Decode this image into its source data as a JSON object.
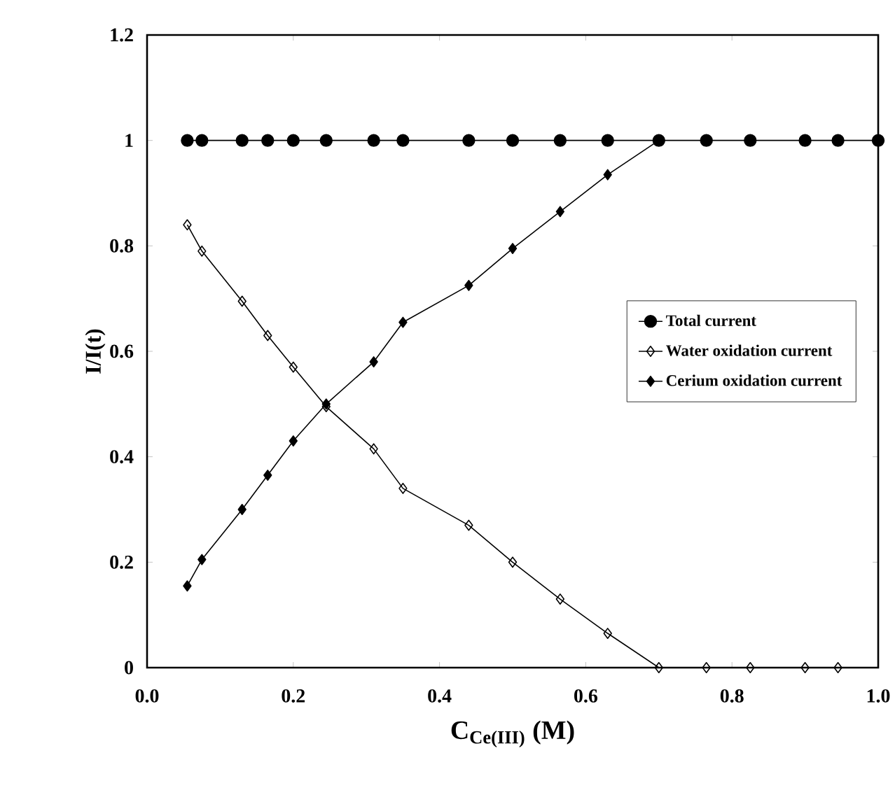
{
  "chart_data": {
    "type": "line",
    "xlabel": "C$_{Ce(III)}$ (M)",
    "ylabel": "I/I(t)",
    "xlim": [
      0,
      1
    ],
    "ylim": [
      0,
      1.2
    ],
    "xticks": [
      {
        "value": 0,
        "label": "0.0"
      },
      0.2,
      0.4,
      0.6,
      0.8,
      {
        "value": 1,
        "label": "1.0"
      }
    ],
    "yticks": [
      0,
      0.2,
      0.4,
      0.6,
      0.8,
      1,
      1.2
    ],
    "legend": "right",
    "grid": false,
    "line_style": "solid",
    "series": [
      {
        "name": "Total current",
        "color": "#000000",
        "marker": "circle",
        "x": [
          0.055,
          0.075,
          0.13,
          0.165,
          0.2,
          0.245,
          0.31,
          0.35,
          0.44,
          0.5,
          0.565,
          0.63,
          0.7,
          0.765,
          0.825,
          0.9,
          0.945,
          1.0
        ],
        "values": [
          1,
          1,
          1,
          1,
          1,
          1,
          1,
          1,
          1,
          1,
          1,
          1,
          1,
          1,
          1,
          1,
          1,
          1
        ]
      },
      {
        "name": "Water oxidation current",
        "color": "#000000",
        "marker": "diamond",
        "x": [
          0.055,
          0.075,
          0.13,
          0.165,
          0.2,
          0.245,
          0.31,
          0.35,
          0.44,
          0.5,
          0.565,
          0.63,
          0.7,
          0.765,
          0.825,
          0.9,
          0.945
        ],
        "values": [
          0.84,
          0.79,
          0.695,
          0.63,
          0.57,
          0.495,
          0.415,
          0.34,
          0.27,
          0.2,
          0.13,
          0.065,
          0,
          0,
          0,
          0,
          0
        ]
      },
      {
        "name": "Cerium oxidation current",
        "color": "#000000",
        "marker": "diamond",
        "x": [
          0.055,
          0.075,
          0.13,
          0.165,
          0.2,
          0.245,
          0.31,
          0.35,
          0.44,
          0.5,
          0.565,
          0.63,
          0.7
        ],
        "values": [
          0.155,
          0.205,
          0.3,
          0.365,
          0.43,
          0.5,
          0.58,
          0.655,
          0.725,
          0.795,
          0.865,
          0.935,
          1.0
        ]
      }
    ]
  }
}
